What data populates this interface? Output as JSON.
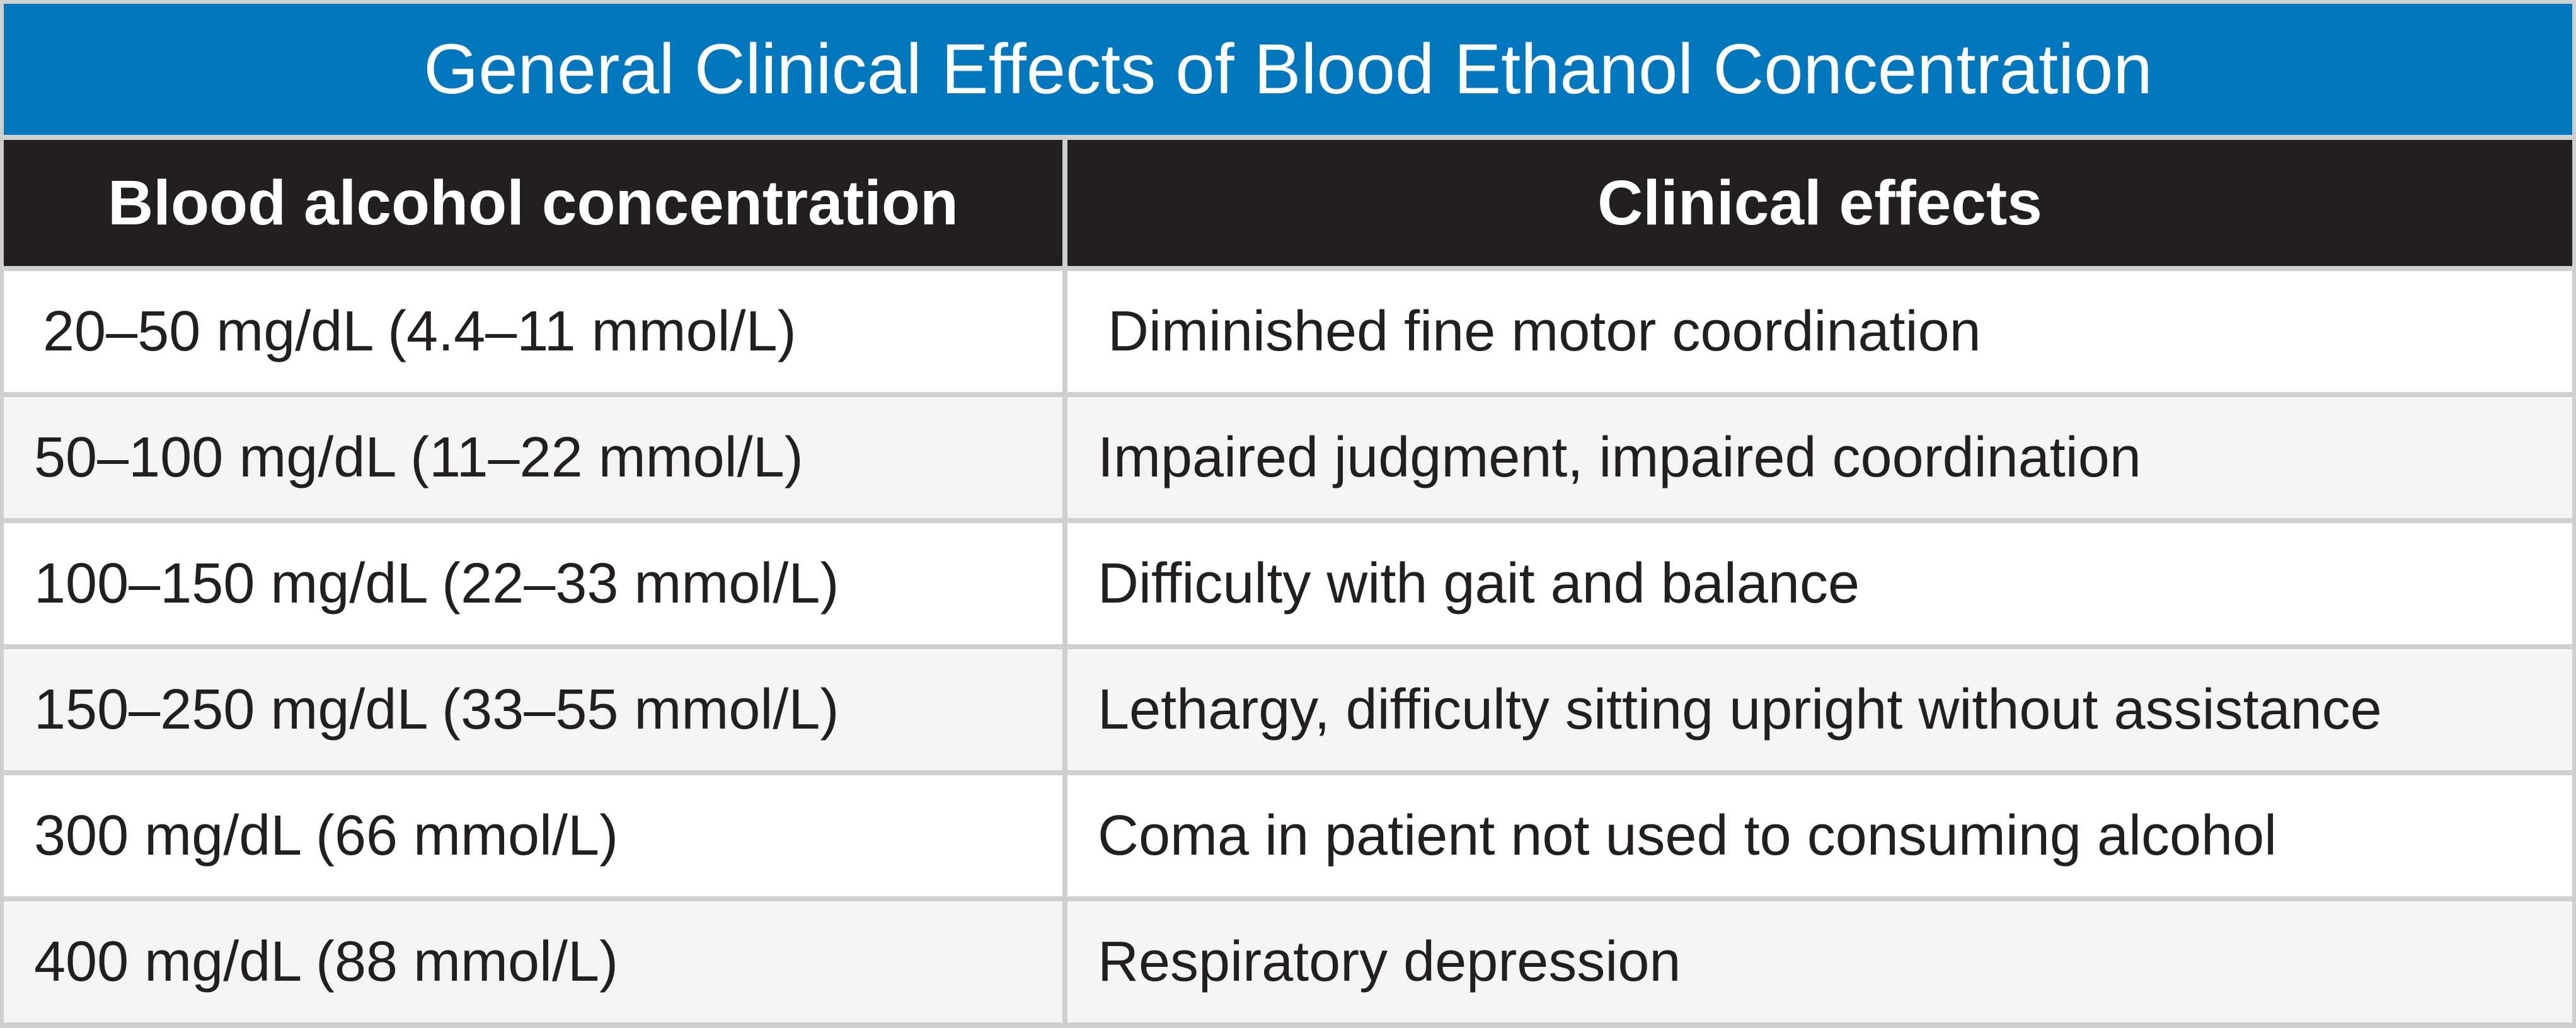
{
  "title": "General Clinical Effects of Blood Ethanol Concentration",
  "headers": {
    "concentration": "Blood alcohol concentration",
    "effects": "Clinical effects"
  },
  "rows": [
    {
      "concentration": "20–50 mg/dL (4.4–11 mmol/L)",
      "effect": "Diminished fine motor coordination"
    },
    {
      "concentration": "50–100 mg/dL (11–22 mmol/L)",
      "effect": "Impaired judgment, impaired coordination"
    },
    {
      "concentration": "100–150 mg/dL (22–33 mmol/L)",
      "effect": "Difficulty with gait and balance"
    },
    {
      "concentration": "150–250 mg/dL (33–55 mmol/L)",
      "effect": "Lethargy, difficulty sitting upright without assistance"
    },
    {
      "concentration": "300 mg/dL (66 mmol/L)",
      "effect": "Coma in patient not used to consuming alcohol"
    },
    {
      "concentration": "400 mg/dL (88 mmol/L)",
      "effect": "Respiratory depression"
    }
  ],
  "colors": {
    "title_background": "#0277bd",
    "header_background": "#231f20",
    "row_alt_background": "#f4f4f4",
    "grid_line": "#cfcfcf"
  }
}
